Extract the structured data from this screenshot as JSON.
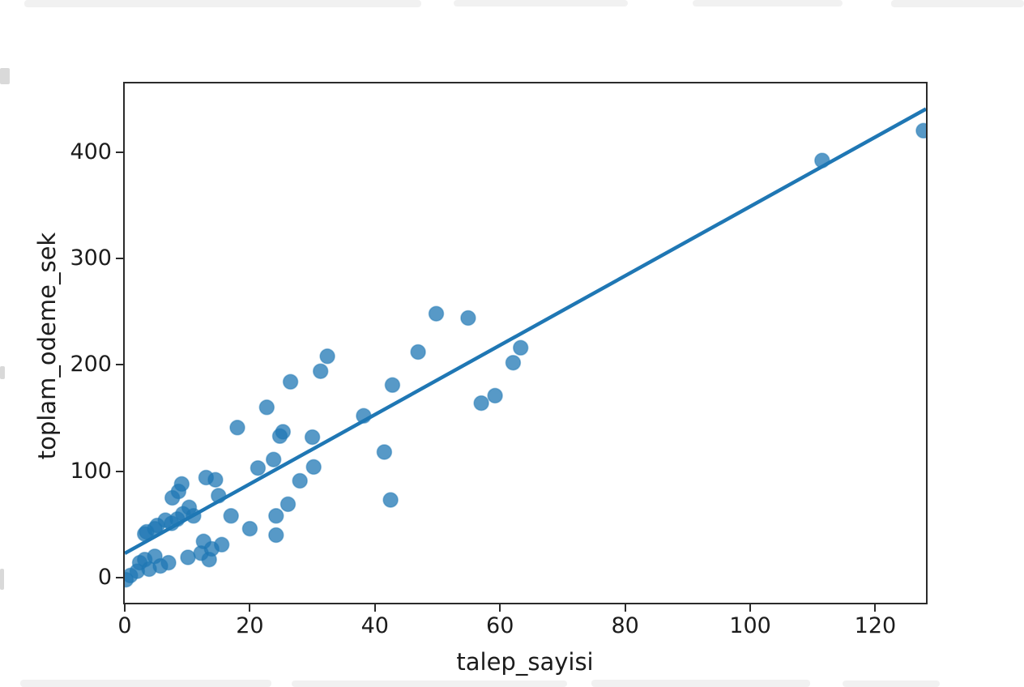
{
  "figure": {
    "background": "#ffffff",
    "point_color": "#1f77b4",
    "point_opacity": 0.75,
    "line_color": "#1f77b4",
    "spine_color": "#2b2b2b",
    "text_color": "#1c1c1c"
  },
  "chart_data": {
    "type": "scatter",
    "title": "",
    "xlabel": "talep_sayisi",
    "ylabel": "toplam_odeme_sek",
    "legend": null,
    "grid": false,
    "xlim": [
      0,
      128.1
    ],
    "ylim": [
      -23.6,
      464.4
    ],
    "x_ticks": [
      0,
      20,
      40,
      60,
      80,
      100,
      120
    ],
    "y_ticks": [
      0,
      100,
      200,
      300,
      400
    ],
    "points": [
      [
        0.2,
        -2
      ],
      [
        0.9,
        2
      ],
      [
        2.0,
        6
      ],
      [
        2.4,
        14
      ],
      [
        3.2,
        17
      ],
      [
        3.9,
        8
      ],
      [
        4.8,
        20
      ],
      [
        5.7,
        11
      ],
      [
        7.0,
        14
      ],
      [
        3.2,
        41
      ],
      [
        3.5,
        43
      ],
      [
        4.8,
        46
      ],
      [
        5.2,
        49
      ],
      [
        6.5,
        54
      ],
      [
        7.5,
        51
      ],
      [
        8.4,
        55
      ],
      [
        9.3,
        60
      ],
      [
        10.3,
        66
      ],
      [
        11.0,
        58
      ],
      [
        7.6,
        75
      ],
      [
        8.6,
        81
      ],
      [
        9.1,
        88
      ],
      [
        13.0,
        94
      ],
      [
        14.5,
        92
      ],
      [
        10.1,
        19
      ],
      [
        12.2,
        23
      ],
      [
        12.6,
        34
      ],
      [
        13.9,
        27
      ],
      [
        13.5,
        17
      ],
      [
        15.0,
        77
      ],
      [
        15.5,
        31
      ],
      [
        17.0,
        58
      ],
      [
        18.0,
        141
      ],
      [
        20.0,
        46
      ],
      [
        21.3,
        103
      ],
      [
        22.7,
        160
      ],
      [
        23.8,
        111
      ],
      [
        24.2,
        40
      ],
      [
        24.2,
        58
      ],
      [
        24.8,
        133
      ],
      [
        25.3,
        137
      ],
      [
        26.1,
        69
      ],
      [
        26.5,
        184
      ],
      [
        28.0,
        91
      ],
      [
        30.0,
        132
      ],
      [
        30.2,
        104
      ],
      [
        31.3,
        194
      ],
      [
        32.4,
        208
      ],
      [
        38.2,
        152
      ],
      [
        41.5,
        118
      ],
      [
        42.5,
        73
      ],
      [
        42.8,
        181
      ],
      [
        46.9,
        212
      ],
      [
        49.8,
        248
      ],
      [
        54.9,
        244
      ],
      [
        57.0,
        164
      ],
      [
        59.2,
        171
      ],
      [
        62.1,
        202
      ],
      [
        63.3,
        216
      ],
      [
        111.5,
        392
      ],
      [
        127.7,
        420
      ]
    ],
    "regression_line": {
      "slope": 3.26,
      "intercept": 22.8
    }
  }
}
